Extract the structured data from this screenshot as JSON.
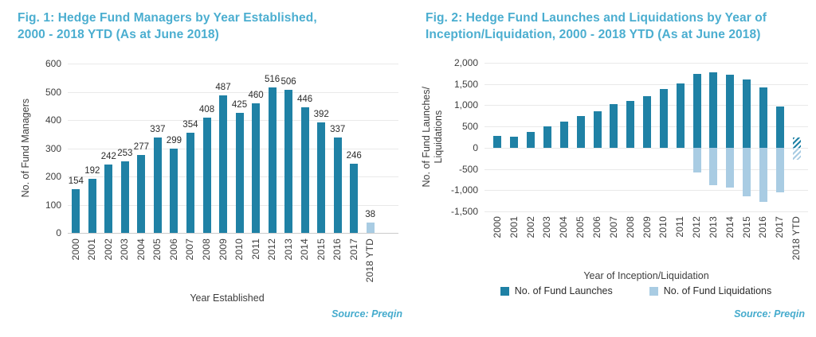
{
  "chart_data": [
    {
      "id": "fig1",
      "type": "bar",
      "title": "Fig. 1: Hedge Fund Managers by Year Established, 2000 - 2018 YTD (As at June 2018)",
      "title_lines": [
        "Fig. 1: Hedge Fund Managers by Year Established,",
        "2000 - 2018 YTD (As at June 2018)"
      ],
      "xlabel": "Year Established",
      "ylabel": "No. of Fund Managers",
      "ylim": [
        0,
        600
      ],
      "ytick_labels": [
        "600",
        "500",
        "400",
        "300",
        "200",
        "100",
        "0"
      ],
      "grid": true,
      "categories": [
        "2000",
        "2001",
        "2002",
        "2003",
        "2004",
        "2005",
        "2006",
        "2007",
        "2008",
        "2009",
        "2010",
        "2011",
        "2012",
        "2013",
        "2014",
        "2015",
        "2016",
        "2017",
        "2018 YTD"
      ],
      "values": [
        154,
        192,
        242,
        253,
        277,
        337,
        299,
        354,
        408,
        487,
        425,
        460,
        516,
        506,
        446,
        392,
        337,
        246,
        38
      ],
      "show_value_labels": true,
      "colors": {
        "bar": "#1F81A5",
        "last_bar": "#A9CCE3",
        "title": "#4BAED0",
        "source": "#45ABCD",
        "gridline": "#E9E9E9",
        "zero_line": "#CBCBCB"
      },
      "source": "Source: Preqin"
    },
    {
      "id": "fig2",
      "type": "bar",
      "title": "Fig. 2: Hedge Fund Launches and Liquidations by Year of Inception/Liquidation, 2000 - 2018 YTD (As at June 2018)",
      "title_lines": [
        "Fig. 2: Hedge Fund Launches and Liquidations by Year of",
        "Inception/Liquidation, 2000 - 2018 YTD (As at June 2018)"
      ],
      "xlabel": "Year of Inception/Liquidation",
      "ylabel_lines": [
        "No. of Fund Launches/",
        "Liquidations"
      ],
      "ylim": [
        -1500,
        2000
      ],
      "ytick_labels": [
        "2,000",
        "1,500",
        "1,000",
        "500",
        "0",
        "-500",
        "-1,000",
        "-1,500"
      ],
      "grid": true,
      "categories": [
        "2000",
        "2001",
        "2002",
        "2003",
        "2004",
        "2005",
        "2006",
        "2007",
        "2008",
        "2009",
        "2010",
        "2011",
        "2012",
        "2013",
        "2014",
        "2015",
        "2016",
        "2017",
        "2018 YTD"
      ],
      "series": [
        {
          "name": "No. of Fund Launches",
          "color": "#1F81A5",
          "values": [
            270,
            260,
            380,
            500,
            620,
            750,
            860,
            1020,
            1100,
            1210,
            1390,
            1520,
            1730,
            1770,
            1720,
            1600,
            1420,
            970,
            240
          ]
        },
        {
          "name": "No. of Fund Liquidations",
          "color": "#A9CCE3",
          "values": [
            null,
            null,
            null,
            null,
            null,
            null,
            null,
            null,
            null,
            null,
            null,
            null,
            -580,
            -880,
            -930,
            -1140,
            -1280,
            -1050,
            -280
          ]
        }
      ],
      "last_bar_hatched": true,
      "legend_position": "bottom",
      "colors": {
        "title": "#4BAED0",
        "source": "#45ABCD",
        "gridline": "#E9E9E9",
        "zero_line": "#E9E9E9"
      },
      "source": "Source: Preqin"
    }
  ]
}
